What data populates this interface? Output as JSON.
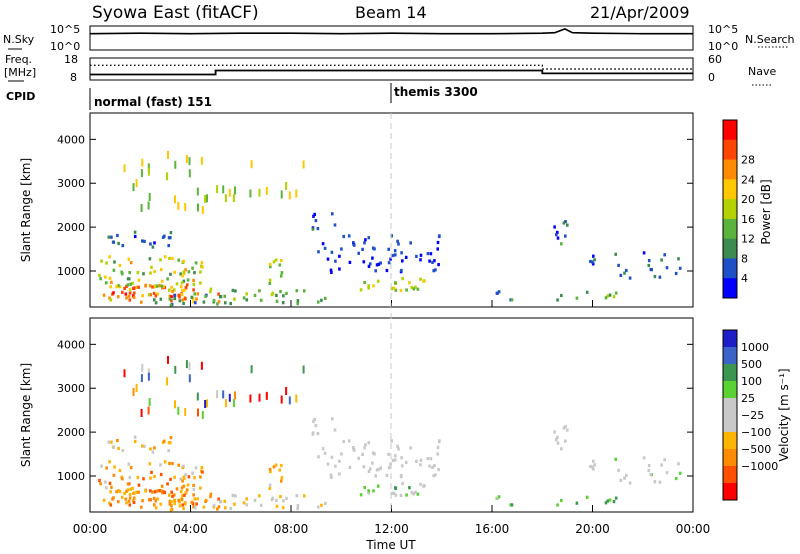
{
  "header": {
    "title": "Syowa East (fitACF)",
    "beam": "Beam 14",
    "date": "21/Apr/2009"
  },
  "noise_panel": {
    "left_label": "N.Sky",
    "right_label": "N.Search",
    "left_ticks": [
      "10^5",
      "10^0"
    ],
    "right_ticks": [
      "10^5",
      "10^0"
    ]
  },
  "freq_panel": {
    "left_label_1": "Freq.",
    "left_label_2": "[MHz]",
    "right_label": "Nave",
    "left_ticks": [
      "18",
      "8"
    ],
    "right_ticks": [
      "60",
      "0"
    ]
  },
  "cpid_panel": {
    "label": "CPID",
    "modes": [
      {
        "name": "normal (fast) 151",
        "start_h": 0
      },
      {
        "name": "themis 3300",
        "start_h": 12
      }
    ]
  },
  "colors": {
    "power_scale": [
      "#0000ff",
      "#1e50c8",
      "#3c8c50",
      "#5ab43c",
      "#b4d200",
      "#ffc800",
      "#ff8c00",
      "#ff4600",
      "#ff0000"
    ],
    "velocity_scale": [
      "#ff0000",
      "#ff5000",
      "#ff8c00",
      "#ffb400",
      "#c8c8c8",
      "#c8c8c8",
      "#5ad232",
      "#3c9650",
      "#3c64c8",
      "#1e1ec8"
    ]
  },
  "chart_data": [
    {
      "type": "line",
      "name": "noise",
      "x": [
        0,
        2,
        4,
        6,
        8,
        10,
        12,
        14,
        16,
        18,
        18.5,
        18.9,
        19.2,
        20,
        22,
        24
      ],
      "series": [
        {
          "name": "N.Sky",
          "values": [
            3.4,
            3.5,
            3.4,
            3.5,
            3.5,
            3.4,
            3.5,
            3.4,
            3.4,
            3.5,
            3.6,
            4.4,
            3.6,
            3.5,
            3.4,
            3.4
          ]
        }
      ],
      "xlim": [
        0,
        24
      ]
    },
    {
      "type": "line",
      "name": "frequency",
      "x": [
        0,
        5,
        5,
        18,
        18,
        24
      ],
      "series": [
        {
          "name": "Freq.",
          "values": [
            10.5,
            10.5,
            12.3,
            12.3,
            11.0,
            11.0
          ]
        },
        {
          "name": "Nave",
          "values": [
            40,
            40,
            40,
            40,
            30,
            30
          ]
        }
      ],
      "ylim": [
        8,
        18
      ],
      "y2lim": [
        0,
        60
      ],
      "xlim": [
        0,
        24
      ]
    },
    {
      "type": "heatmap",
      "name": "power",
      "xlabel": "",
      "ylabel": "Slant Range [km]",
      "xlim": [
        0,
        24
      ],
      "ylim": [
        180,
        4600
      ],
      "yticks": [
        "1000",
        "2000",
        "3000",
        "4000"
      ],
      "colorbar_label": "Power [dB]",
      "colorbar_ticks": [
        "4",
        "8",
        "12",
        "16",
        "20",
        "24",
        "28"
      ],
      "colorbar_range": [
        0,
        32
      ]
    },
    {
      "type": "heatmap",
      "name": "velocity",
      "xlabel": "Time UT",
      "ylabel": "Slant Range [km]",
      "xlim": [
        0,
        24
      ],
      "ylim": [
        180,
        4600
      ],
      "xticks": [
        "00:00",
        "04:00",
        "08:00",
        "12:00",
        "16:00",
        "20:00",
        "00:00"
      ],
      "yticks": [
        "1000",
        "2000",
        "3000",
        "4000"
      ],
      "colorbar_label": "Velocity [m s⁻¹]",
      "colorbar_ticks": [
        "1000",
        "500",
        "100",
        "25",
        "−25",
        "−100",
        "−500",
        "−1000"
      ]
    }
  ]
}
